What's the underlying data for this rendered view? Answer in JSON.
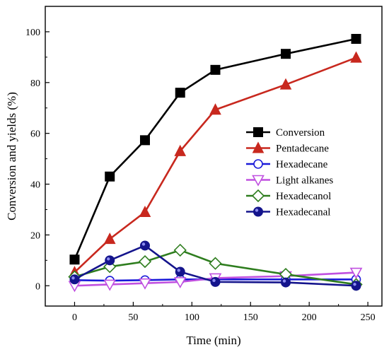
{
  "chart_data": {
    "type": "line",
    "title": "",
    "xlabel": "Time (min)",
    "ylabel": "Conversion and yields (%)",
    "xlim": [
      -25,
      262
    ],
    "ylim": [
      -8,
      110
    ],
    "xticks": [
      0,
      50,
      100,
      150,
      200,
      250
    ],
    "yticks": [
      0,
      20,
      40,
      60,
      80,
      100
    ],
    "grid": false,
    "legend_position": "center-right",
    "series": [
      {
        "name": "Conversion",
        "color": "#000000",
        "marker": "square-filled",
        "x": [
          0,
          30,
          60,
          90,
          120,
          180,
          240
        ],
        "y": [
          10.3,
          43.0,
          57.3,
          76.0,
          85.0,
          91.3,
          97.2
        ]
      },
      {
        "name": "Pentadecane",
        "color": "#c8281e",
        "marker": "triangle-up-filled",
        "x": [
          0,
          30,
          60,
          90,
          120,
          180,
          240
        ],
        "y": [
          5.3,
          18.4,
          29.0,
          53.0,
          69.3,
          79.2,
          89.8
        ]
      },
      {
        "name": "Hexadecane",
        "color": "#1a1ad9",
        "marker": "circle-open",
        "x": [
          0,
          30,
          60,
          90,
          120,
          180,
          240
        ],
        "y": [
          2.2,
          2.0,
          2.2,
          2.5,
          2.5,
          2.5,
          2.5
        ]
      },
      {
        "name": "Light alkanes",
        "color": "#c050e0",
        "marker": "triangle-down-open",
        "x": [
          0,
          30,
          60,
          90,
          120,
          180,
          240
        ],
        "y": [
          0.0,
          0.5,
          1.0,
          1.5,
          3.0,
          3.8,
          5.2
        ]
      },
      {
        "name": "Hexadecanol",
        "color": "#2e7d1e",
        "marker": "diamond-open",
        "x": [
          0,
          30,
          60,
          90,
          120,
          180,
          240
        ],
        "y": [
          3.5,
          7.5,
          9.5,
          14.0,
          8.8,
          4.5,
          0.5
        ]
      },
      {
        "name": "Hexadecanal",
        "color": "#14148c",
        "marker": "circle-filled",
        "x": [
          0,
          30,
          60,
          90,
          120,
          180,
          240
        ],
        "y": [
          2.5,
          10.0,
          15.8,
          5.5,
          1.5,
          1.3,
          0.0
        ]
      }
    ]
  }
}
